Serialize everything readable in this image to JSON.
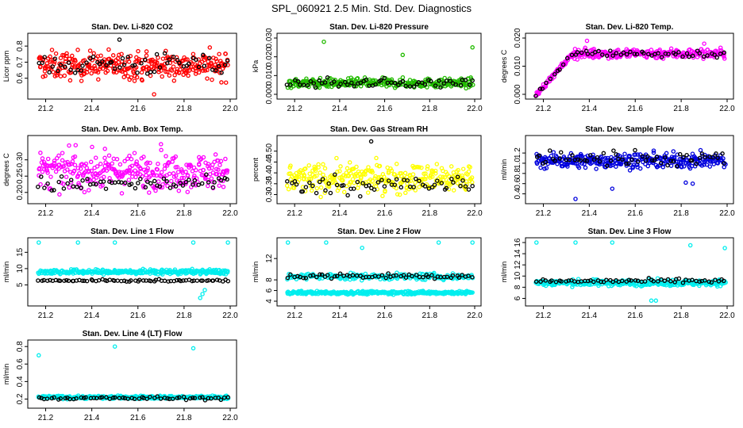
{
  "figure_title": "SPL_060921  2.5 Min. Std. Dev. Diagnostics",
  "chart_data": [
    {
      "type": "scatter",
      "title": "Stan. Dev. Li-820 CO2",
      "ylabel": "Licor ppm",
      "xlim": [
        21.15,
        22.0
      ],
      "ylim": [
        0.5,
        0.85
      ],
      "xticks": [
        "21.2",
        "21.4",
        "21.6",
        "21.8",
        "22.0"
      ],
      "yticks": [
        "0.6",
        "0.7",
        "0.8"
      ],
      "series": [
        {
          "name": "color",
          "color": "#ff0000",
          "center": 0.68,
          "spread": 0.07,
          "n": 320
        },
        {
          "name": "black",
          "color": "#000000",
          "center": 0.69,
          "spread": 0.06,
          "n": 60
        }
      ],
      "outliers": [
        {
          "x": 21.67,
          "y": 0.5,
          "color": "#ff0000"
        },
        {
          "x": 21.52,
          "y": 0.84,
          "color": "#000000"
        }
      ]
    },
    {
      "type": "scatter",
      "title": "Stan. Dev. Li-820 Pressure",
      "ylabel": "kPa",
      "xlim": [
        21.15,
        22.0
      ],
      "ylim": [
        0.0,
        0.03
      ],
      "xticks": [
        "21.2",
        "21.4",
        "21.6",
        "21.8",
        "22.0"
      ],
      "yticks": [
        "0.000",
        "0.010",
        "0.020",
        "0.030"
      ],
      "series": [
        {
          "name": "color",
          "color": "#22bb00",
          "center": 0.006,
          "spread": 0.002,
          "n": 320
        },
        {
          "name": "black",
          "color": "#000000",
          "center": 0.006,
          "spread": 0.002,
          "n": 60
        }
      ],
      "outliers": [
        {
          "x": 21.33,
          "y": 0.028,
          "color": "#22bb00"
        },
        {
          "x": 21.68,
          "y": 0.021,
          "color": "#22bb00"
        },
        {
          "x": 21.99,
          "y": 0.025,
          "color": "#22bb00"
        }
      ]
    },
    {
      "type": "scatter",
      "title": "Stan. Dev. Li-820 Temp.",
      "ylabel": "degrees C",
      "xlim": [
        21.15,
        22.0
      ],
      "ylim": [
        0.0,
        0.02
      ],
      "xticks": [
        "21.2",
        "21.4",
        "21.6",
        "21.8",
        "22.0"
      ],
      "yticks": [
        "0.000",
        "0.010",
        "0.020"
      ],
      "series": [
        {
          "name": "color",
          "color": "#ff00ff",
          "center": 0.0145,
          "spread": 0.0015,
          "n": 300,
          "ramp": [
            21.17,
            21.33,
            0.0,
            0.0145
          ]
        },
        {
          "name": "black",
          "color": "#000000",
          "center": 0.0145,
          "spread": 0.0012,
          "n": 55,
          "ramp": [
            21.17,
            21.33,
            0.0,
            0.0145
          ]
        }
      ],
      "outliers": [
        {
          "x": 21.39,
          "y": 0.019,
          "color": "#ff00ff"
        },
        {
          "x": 21.9,
          "y": 0.018,
          "color": "#ff00ff"
        }
      ]
    },
    {
      "type": "scatter",
      "title": "Stan. Dev. Amb. Box Temp.",
      "ylabel": "degrees C",
      "xlim": [
        21.15,
        22.0
      ],
      "ylim": [
        0.18,
        0.36
      ],
      "xticks": [
        "21.2",
        "21.4",
        "21.6",
        "21.8",
        "22.0"
      ],
      "yticks": [
        "0.20",
        "0.25",
        "0.30"
      ],
      "series": [
        {
          "name": "color",
          "color": "#ff00ff",
          "center": 0.265,
          "spread": 0.045,
          "n": 320
        },
        {
          "name": "black",
          "color": "#000000",
          "center": 0.225,
          "spread": 0.02,
          "n": 60
        }
      ],
      "outliers": [
        {
          "x": 21.33,
          "y": 0.345,
          "color": "#ff00ff"
        },
        {
          "x": 21.7,
          "y": 0.348,
          "color": "#ff00ff"
        }
      ]
    },
    {
      "type": "scatter",
      "title": "Stan. Dev. Gas Stream RH",
      "ylabel": "percent",
      "xlim": [
        21.15,
        22.0
      ],
      "ylim": [
        0.28,
        0.55
      ],
      "xticks": [
        "21.2",
        "21.4",
        "21.6",
        "21.8",
        "22.0"
      ],
      "yticks": [
        "0.30",
        "0.35",
        "0.40",
        "0.45",
        "0.50"
      ],
      "series": [
        {
          "name": "color",
          "color": "#ffff00",
          "center": 0.375,
          "spread": 0.055,
          "n": 320
        },
        {
          "name": "black",
          "color": "#000000",
          "center": 0.345,
          "spread": 0.035,
          "n": 60
        }
      ],
      "outliers": [
        {
          "x": 21.54,
          "y": 0.545,
          "color": "#000000"
        }
      ]
    },
    {
      "type": "scatter",
      "title": "Stan. Dev. Sample Flow",
      "ylabel": "ml/min",
      "xlim": [
        21.15,
        22.0
      ],
      "ylim": [
        0.3,
        1.45
      ],
      "xticks": [
        "21.2",
        "21.4",
        "21.6",
        "21.8",
        "22.0"
      ],
      "yticks": [
        "0.4",
        "0.6",
        "0.8",
        "1.0",
        "1.2"
      ],
      "series": [
        {
          "name": "color",
          "color": "#0000dd",
          "center": 1.05,
          "spread": 0.12,
          "n": 320
        },
        {
          "name": "black",
          "color": "#000000",
          "center": 1.1,
          "spread": 0.12,
          "n": 60
        }
      ],
      "outliers": [
        {
          "x": 21.34,
          "y": 0.3,
          "color": "#0000dd"
        },
        {
          "x": 21.82,
          "y": 0.62,
          "color": "#0000dd"
        },
        {
          "x": 21.85,
          "y": 0.6,
          "color": "#0000dd"
        },
        {
          "x": 21.5,
          "y": 0.5,
          "color": "#0000dd"
        }
      ]
    },
    {
      "type": "scatter",
      "title": "Stan. Dev. Line 1 Flow",
      "ylabel": "ml/min",
      "xlim": [
        21.15,
        22.0
      ],
      "ylim": [
        0.0,
        18.0
      ],
      "xticks": [
        "21.2",
        "21.4",
        "21.6",
        "21.8",
        "22.0"
      ],
      "yticks": [
        "5",
        "10",
        "15"
      ],
      "series": [
        {
          "name": "color",
          "color": "#00eeee",
          "center": 9.0,
          "spread": 0.6,
          "n": 320
        },
        {
          "name": "black",
          "color": "#000000",
          "center": 6.3,
          "spread": 0.25,
          "n": 70
        }
      ],
      "outliers": [
        {
          "x": 21.17,
          "y": 18.0,
          "color": "#00eeee"
        },
        {
          "x": 21.34,
          "y": 18.0,
          "color": "#00eeee"
        },
        {
          "x": 21.5,
          "y": 18.0,
          "color": "#00eeee"
        },
        {
          "x": 21.84,
          "y": 18.0,
          "color": "#00eeee"
        },
        {
          "x": 21.99,
          "y": 18.0,
          "color": "#00eeee"
        },
        {
          "x": 21.87,
          "y": 1.0,
          "color": "#00eeee"
        },
        {
          "x": 21.88,
          "y": 2.2,
          "color": "#00eeee"
        },
        {
          "x": 21.89,
          "y": 3.4,
          "color": "#00eeee"
        }
      ]
    },
    {
      "type": "scatter",
      "title": "Stan. Dev. Line 2 Flow",
      "ylabel": "ml/min",
      "xlim": [
        21.15,
        22.0
      ],
      "ylim": [
        4.0,
        15.0
      ],
      "xticks": [
        "21.2",
        "21.4",
        "21.6",
        "21.8",
        "22.0"
      ],
      "yticks": [
        "4",
        "6",
        "8",
        "12"
      ],
      "series": [
        {
          "name": "color",
          "color": "#00eeee",
          "center": 5.6,
          "spread": 0.25,
          "n": 320
        },
        {
          "name": "color2",
          "color": "#00eeee",
          "center": 8.6,
          "spread": 0.5,
          "n": 200
        },
        {
          "name": "black",
          "color": "#000000",
          "center": 8.7,
          "spread": 0.4,
          "n": 60
        }
      ],
      "outliers": [
        {
          "x": 21.17,
          "y": 15.0,
          "color": "#00eeee"
        },
        {
          "x": 21.34,
          "y": 15.0,
          "color": "#00eeee"
        },
        {
          "x": 21.5,
          "y": 14.0,
          "color": "#00eeee"
        },
        {
          "x": 21.84,
          "y": 15.0,
          "color": "#00eeee"
        },
        {
          "x": 21.99,
          "y": 15.0,
          "color": "#00eeee"
        }
      ]
    },
    {
      "type": "scatter",
      "title": "Stan. Dev. Line 3 Flow",
      "ylabel": "ml/min",
      "xlim": [
        21.15,
        22.0
      ],
      "ylim": [
        5.5,
        16.0
      ],
      "xticks": [
        "21.2",
        "21.4",
        "21.6",
        "21.8",
        "22.0"
      ],
      "yticks": [
        "6",
        "8",
        "10",
        "12",
        "14",
        "16"
      ],
      "series": [
        {
          "name": "color",
          "color": "#00eeee",
          "center": 8.8,
          "spread": 0.45,
          "n": 320
        },
        {
          "name": "black",
          "color": "#000000",
          "center": 9.1,
          "spread": 0.3,
          "n": 60
        }
      ],
      "outliers": [
        {
          "x": 21.17,
          "y": 16.0,
          "color": "#00eeee"
        },
        {
          "x": 21.34,
          "y": 16.0,
          "color": "#00eeee"
        },
        {
          "x": 21.5,
          "y": 16.0,
          "color": "#00eeee"
        },
        {
          "x": 21.84,
          "y": 15.5,
          "color": "#00eeee"
        },
        {
          "x": 21.99,
          "y": 15.0,
          "color": "#00eeee"
        },
        {
          "x": 21.67,
          "y": 5.6,
          "color": "#00eeee"
        },
        {
          "x": 21.69,
          "y": 5.6,
          "color": "#00eeee"
        }
      ]
    },
    {
      "type": "scatter",
      "title": "Stan. Dev. Line 4 (LT) Flow",
      "ylabel": "ml/min",
      "xlim": [
        21.15,
        22.0
      ],
      "ylim": [
        0.15,
        0.82
      ],
      "xticks": [
        "21.2",
        "21.4",
        "21.6",
        "21.8",
        "22.0"
      ],
      "yticks": [
        "0.2",
        "0.4",
        "0.6",
        "0.8"
      ],
      "series": [
        {
          "name": "color",
          "color": "#00eeee",
          "center": 0.22,
          "spread": 0.015,
          "n": 320
        },
        {
          "name": "black",
          "color": "#000000",
          "center": 0.21,
          "spread": 0.015,
          "n": 60
        }
      ],
      "outliers": [
        {
          "x": 21.17,
          "y": 0.7,
          "color": "#00eeee"
        },
        {
          "x": 21.5,
          "y": 0.8,
          "color": "#00eeee"
        },
        {
          "x": 21.84,
          "y": 0.78,
          "color": "#00eeee"
        }
      ]
    }
  ]
}
